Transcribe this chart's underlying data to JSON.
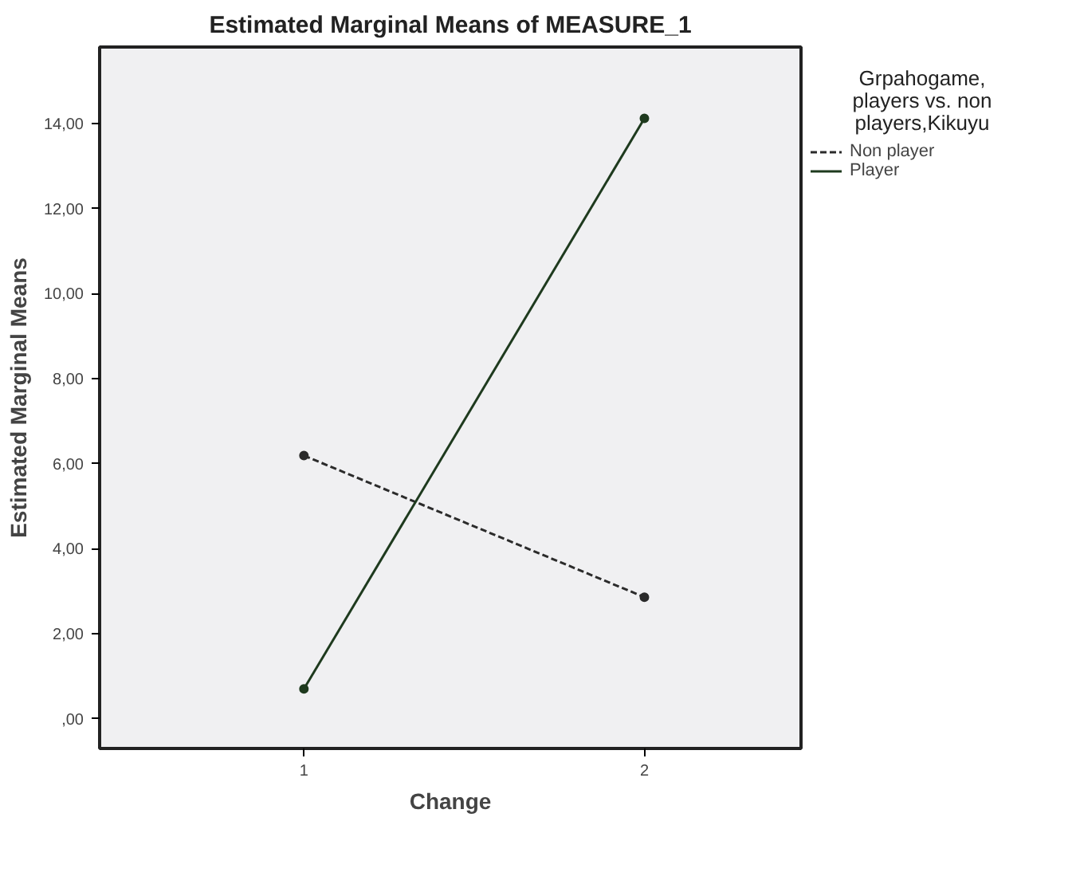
{
  "chart_data": {
    "type": "line",
    "title": "Estimated Marginal Means of MEASURE_1",
    "xlabel": "Change",
    "ylabel": "Estimated Marginal Means",
    "legend_title": "Grpahogame, players vs. non players,Kikuyu",
    "categories": [
      "1",
      "2"
    ],
    "series": [
      {
        "name": "Non player",
        "color": "#2b2b2b",
        "line_style": "dashed",
        "values": [
          6.19,
          2.86
        ]
      },
      {
        "name": "Player",
        "color": "#1e3a1e",
        "line_style": "solid",
        "values": [
          0.7,
          14.12
        ]
      }
    ],
    "ylim": [
      -0.7,
      15.8
    ],
    "yticks": [
      {
        "value": 0,
        "label": ",00"
      },
      {
        "value": 2,
        "label": "2,00"
      },
      {
        "value": 4,
        "label": "4,00"
      },
      {
        "value": 6,
        "label": "6,00"
      },
      {
        "value": 8,
        "label": "8,00"
      },
      {
        "value": 10,
        "label": "10,00"
      },
      {
        "value": 12,
        "label": "12,00"
      },
      {
        "value": 14,
        "label": "14,00"
      }
    ],
    "marker": "circle",
    "grid": false,
    "legend": "right"
  }
}
